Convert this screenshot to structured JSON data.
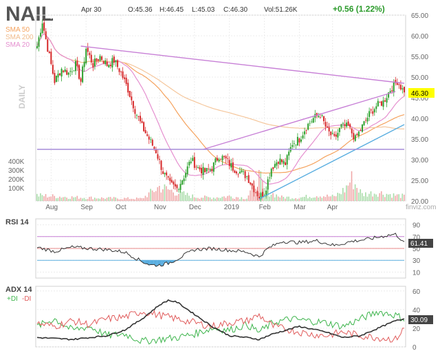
{
  "chart_data": {
    "type": "candlestick",
    "ticker": "NAIL",
    "header": {
      "date": "Apr 30",
      "open": "O:45.36",
      "high": "H:46.45",
      "low": "L:45.03",
      "close": "C:46.30",
      "volume": "Vol:51.26K",
      "change": "+0.56 (1.22%)"
    },
    "watermark": "finviz.com",
    "period_label": "DAILY",
    "sma_legend": [
      {
        "name": "SMA 50",
        "color": "#f5a25d"
      },
      {
        "name": "SMA 200",
        "color": "#f5c69b"
      },
      {
        "name": "SMA 20",
        "color": "#e58fcf"
      }
    ],
    "price_axis": {
      "min": 20,
      "max": 65,
      "ticks": [
        "65.00",
        "60.00",
        "55.00",
        "50.00",
        "45.00",
        "40.00",
        "35.00",
        "30.00",
        "25.00",
        "20.00"
      ]
    },
    "last_price": "46.30",
    "volume_axis": {
      "ticks": [
        "400K",
        "300K",
        "200K",
        "100K"
      ]
    },
    "x_labels": [
      "Aug",
      "Sep",
      "Oct",
      "Nov",
      "Dec",
      "2019",
      "Feb",
      "Mar",
      "Apr"
    ],
    "price_keypoints": [
      [
        0,
        57.5
      ],
      [
        3,
        63.5
      ],
      [
        6,
        57
      ],
      [
        10,
        49
      ],
      [
        14,
        52
      ],
      [
        18,
        51
      ],
      [
        22,
        53
      ],
      [
        25,
        49
      ],
      [
        28,
        57
      ],
      [
        32,
        53
      ],
      [
        36,
        55
      ],
      [
        40,
        53
      ],
      [
        44,
        54
      ],
      [
        48,
        51
      ],
      [
        52,
        47
      ],
      [
        56,
        42
      ],
      [
        60,
        38
      ],
      [
        64,
        35
      ],
      [
        68,
        32
      ],
      [
        72,
        27
      ],
      [
        76,
        24
      ],
      [
        80,
        23
      ],
      [
        84,
        26
      ],
      [
        88,
        30
      ],
      [
        92,
        28
      ],
      [
        96,
        27
      ],
      [
        100,
        28
      ],
      [
        104,
        31
      ],
      [
        108,
        30
      ],
      [
        112,
        28
      ],
      [
        116,
        27
      ],
      [
        120,
        26
      ],
      [
        124,
        23
      ],
      [
        127,
        21
      ],
      [
        130,
        22
      ],
      [
        134,
        28
      ],
      [
        138,
        30
      ],
      [
        142,
        29
      ],
      [
        146,
        34
      ],
      [
        150,
        35
      ],
      [
        154,
        38
      ],
      [
        158,
        40
      ],
      [
        162,
        41
      ],
      [
        166,
        37
      ],
      [
        170,
        35
      ],
      [
        174,
        38
      ],
      [
        178,
        38
      ],
      [
        182,
        35
      ],
      [
        186,
        38
      ],
      [
        190,
        41
      ],
      [
        194,
        43
      ],
      [
        198,
        44
      ],
      [
        202,
        47
      ],
      [
        206,
        49
      ],
      [
        210,
        46.3
      ]
    ],
    "volume_keypoints": [
      [
        0,
        60
      ],
      [
        20,
        40
      ],
      [
        40,
        30
      ],
      [
        60,
        25
      ],
      [
        70,
        150
      ],
      [
        80,
        90
      ],
      [
        90,
        45
      ],
      [
        100,
        35
      ],
      [
        110,
        50
      ],
      [
        120,
        30
      ],
      [
        127,
        260
      ],
      [
        130,
        110
      ],
      [
        140,
        40
      ],
      [
        150,
        35
      ],
      [
        160,
        60
      ],
      [
        170,
        45
      ],
      [
        176,
        120
      ],
      [
        180,
        230
      ],
      [
        186,
        70
      ],
      [
        195,
        90
      ],
      [
        205,
        60
      ],
      [
        210,
        51
      ]
    ],
    "trendlines": [
      {
        "name": "resistance-line",
        "color": "#c77fd6",
        "points": [
          [
            25,
            57.5
          ],
          [
            210,
            48.5
          ]
        ]
      },
      {
        "name": "wedge-upper-line",
        "color": "#c77fd6",
        "points": [
          [
            95,
            32.5
          ],
          [
            205,
            46.5
          ]
        ]
      },
      {
        "name": "support-line",
        "color": "#5aaee0",
        "points": [
          [
            127,
            20.5
          ],
          [
            210,
            38.5
          ]
        ]
      },
      {
        "name": "horizontal-line",
        "color": "#a68bd8",
        "points": [
          [
            0,
            32.5
          ],
          [
            210,
            32.5
          ]
        ]
      }
    ],
    "rsi": {
      "label": "RSI 14",
      "ticks": [
        "90",
        "70",
        "50",
        "30",
        "10"
      ],
      "last": "61.41",
      "keypoints": [
        [
          0,
          52
        ],
        [
          10,
          45
        ],
        [
          20,
          52
        ],
        [
          30,
          50
        ],
        [
          40,
          48
        ],
        [
          50,
          44
        ],
        [
          55,
          36
        ],
        [
          60,
          28
        ],
        [
          65,
          22
        ],
        [
          70,
          22
        ],
        [
          75,
          25
        ],
        [
          80,
          32
        ],
        [
          90,
          48
        ],
        [
          100,
          50
        ],
        [
          110,
          47
        ],
        [
          120,
          44
        ],
        [
          127,
          36
        ],
        [
          132,
          50
        ],
        [
          140,
          62
        ],
        [
          150,
          60
        ],
        [
          160,
          63
        ],
        [
          170,
          55
        ],
        [
          180,
          62
        ],
        [
          190,
          66
        ],
        [
          200,
          72
        ],
        [
          205,
          74
        ],
        [
          210,
          61
        ]
      ]
    },
    "adx": {
      "label": "ADX 14",
      "sub_plus": "+DI",
      "sub_minus": "-DI",
      "ticks": [
        "60",
        "40",
        "20",
        "0"
      ],
      "last": "30.09",
      "adx_keypoints": [
        [
          0,
          10
        ],
        [
          20,
          8
        ],
        [
          40,
          12
        ],
        [
          50,
          18
        ],
        [
          60,
          30
        ],
        [
          70,
          45
        ],
        [
          75,
          50
        ],
        [
          80,
          48
        ],
        [
          90,
          35
        ],
        [
          100,
          22
        ],
        [
          110,
          12
        ],
        [
          120,
          10
        ],
        [
          127,
          8
        ],
        [
          135,
          14
        ],
        [
          150,
          22
        ],
        [
          165,
          16
        ],
        [
          175,
          10
        ],
        [
          185,
          12
        ],
        [
          195,
          20
        ],
        [
          205,
          28
        ],
        [
          210,
          30
        ]
      ],
      "plus_keypoints": [
        [
          0,
          22
        ],
        [
          10,
          30
        ],
        [
          20,
          18
        ],
        [
          30,
          22
        ],
        [
          40,
          12
        ],
        [
          50,
          14
        ],
        [
          60,
          6
        ],
        [
          70,
          8
        ],
        [
          80,
          10
        ],
        [
          90,
          14
        ],
        [
          100,
          20
        ],
        [
          110,
          18
        ],
        [
          120,
          24
        ],
        [
          127,
          16
        ],
        [
          135,
          26
        ],
        [
          145,
          30
        ],
        [
          155,
          28
        ],
        [
          165,
          26
        ],
        [
          175,
          22
        ],
        [
          185,
          30
        ],
        [
          195,
          38
        ],
        [
          205,
          34
        ],
        [
          210,
          30
        ]
      ],
      "minus_keypoints": [
        [
          0,
          25
        ],
        [
          10,
          22
        ],
        [
          20,
          28
        ],
        [
          30,
          24
        ],
        [
          40,
          30
        ],
        [
          50,
          32
        ],
        [
          60,
          38
        ],
        [
          70,
          34
        ],
        [
          80,
          30
        ],
        [
          90,
          26
        ],
        [
          100,
          22
        ],
        [
          110,
          26
        ],
        [
          120,
          28
        ],
        [
          127,
          34
        ],
        [
          135,
          22
        ],
        [
          145,
          18
        ],
        [
          155,
          14
        ],
        [
          165,
          12
        ],
        [
          175,
          16
        ],
        [
          185,
          12
        ],
        [
          195,
          10
        ],
        [
          205,
          8
        ],
        [
          210,
          20
        ]
      ]
    }
  }
}
